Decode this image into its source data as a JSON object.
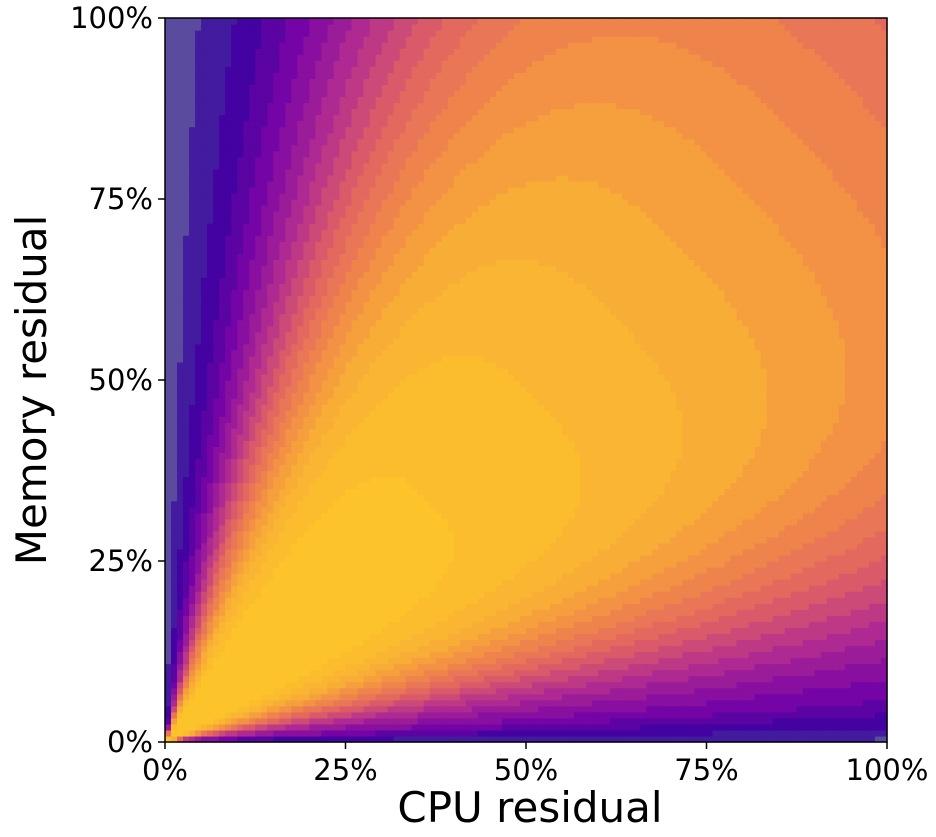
{
  "chart_data": {
    "type": "heatmap",
    "title": "",
    "xlabel": "CPU residual",
    "ylabel": "Memory residual",
    "xlim": [
      0,
      100
    ],
    "ylim": [
      0,
      100
    ],
    "xticks": [
      0,
      25,
      50,
      75,
      100
    ],
    "yticks": [
      0,
      25,
      50,
      75,
      100
    ],
    "xtick_labels": [
      "0%",
      "25%",
      "50%",
      "75%",
      "100%"
    ],
    "ytick_labels": [
      "0%",
      "25%",
      "50%",
      "75%",
      "100%"
    ],
    "colormap": "plasma",
    "colorbar": false,
    "grid": false,
    "contour_levels": 20,
    "colors": {
      "low": "#5b4b9e",
      "high": "#fcc42a"
    },
    "regions": [
      {
        "description": "peak",
        "approx_max_extent": {
          "x": 51,
          "y": 53
        },
        "color": "#fcc42a"
      },
      {
        "description": "high plateau",
        "color": "#f9b234"
      },
      {
        "description": "low edges near axes",
        "color": "#5b4b9e"
      }
    ]
  }
}
